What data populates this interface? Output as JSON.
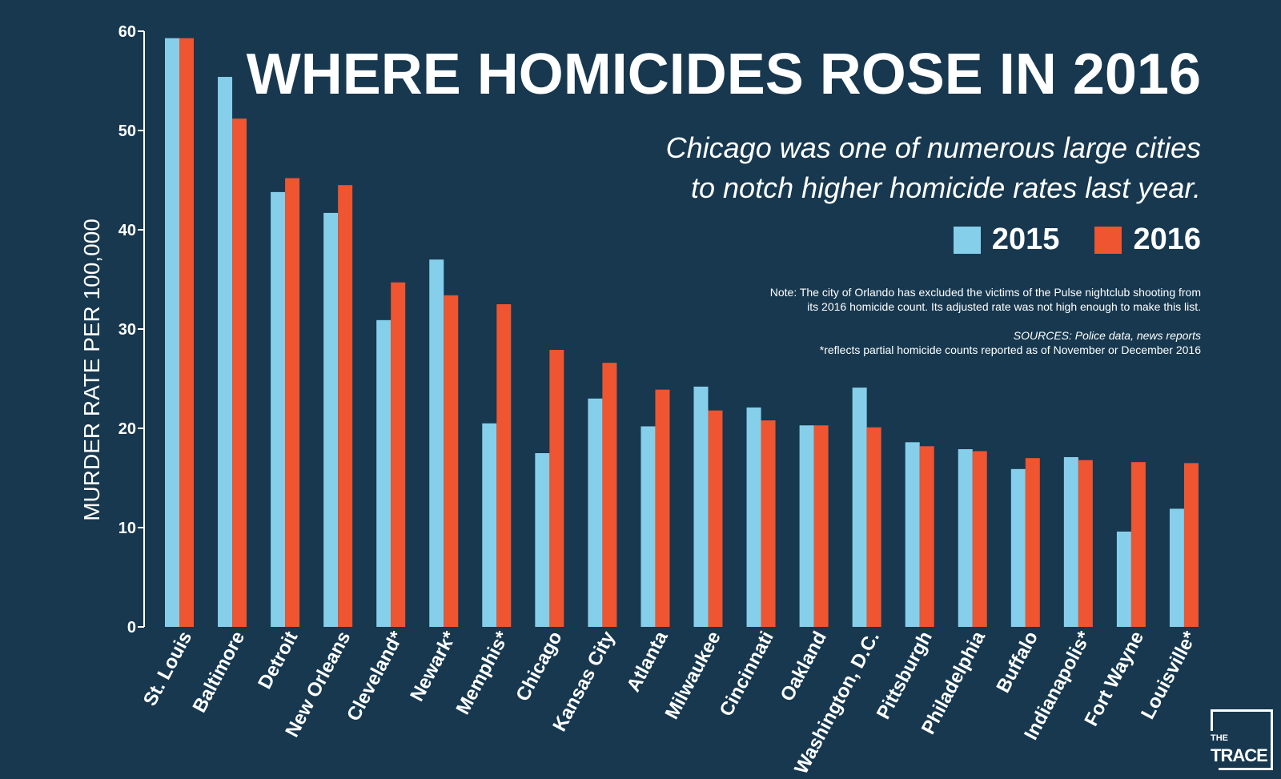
{
  "title": "WHERE HOMICIDES ROSE IN 2016",
  "subtitle_line1": "Chicago was one of numerous large cities",
  "subtitle_line2": "to notch higher homicide rates last year.",
  "note_line1": "Note: The city of Orlando has excluded the victims of the Pulse nightclub shooting from",
  "note_line2": "its 2016 homicide count. Its adjusted rate was not high enough to make this list.",
  "sources": "SOURCES: Police data, news reports",
  "footnote": "*reflects partial homicide counts reported as of November or December 2016",
  "logo": {
    "top": "THE",
    "bottom": "TRACE"
  },
  "colors": {
    "background": "#17384f",
    "series_2015": "#86cfea",
    "series_2016": "#ee5530"
  },
  "chart_data": {
    "type": "bar",
    "title": "WHERE HOMICIDES ROSE IN 2016",
    "xlabel": "",
    "ylabel": "MURDER RATE PER 100,000",
    "ylim": [
      0,
      60
    ],
    "yticks": [
      0,
      10,
      20,
      30,
      40,
      50,
      60
    ],
    "legend": "top-right",
    "categories": [
      "St. Louis",
      "Baltimore",
      "Detroit",
      "New Orleans",
      "Cleveland*",
      "Newark*",
      "Memphis*",
      "Chicago",
      "Kansas City",
      "Atlanta",
      "Milwaukee",
      "Cincinnati",
      "Oakland",
      "Washington, D.C.",
      "Pittsburgh",
      "Philadelphia",
      "Buffalo",
      "Indianapolis*",
      "Fort Wayne",
      "Louisville*"
    ],
    "series": [
      {
        "name": "2015",
        "values": [
          59.3,
          55.4,
          43.8,
          41.7,
          30.9,
          37.0,
          20.5,
          17.5,
          23.0,
          20.2,
          24.2,
          22.1,
          20.3,
          24.1,
          18.6,
          17.9,
          15.9,
          17.1,
          9.6,
          11.9
        ]
      },
      {
        "name": "2016",
        "values": [
          59.3,
          51.2,
          45.2,
          44.5,
          34.7,
          33.4,
          32.5,
          27.9,
          26.6,
          23.9,
          21.8,
          20.8,
          20.3,
          20.1,
          18.2,
          17.7,
          17.0,
          16.8,
          16.6,
          16.5
        ]
      }
    ]
  }
}
